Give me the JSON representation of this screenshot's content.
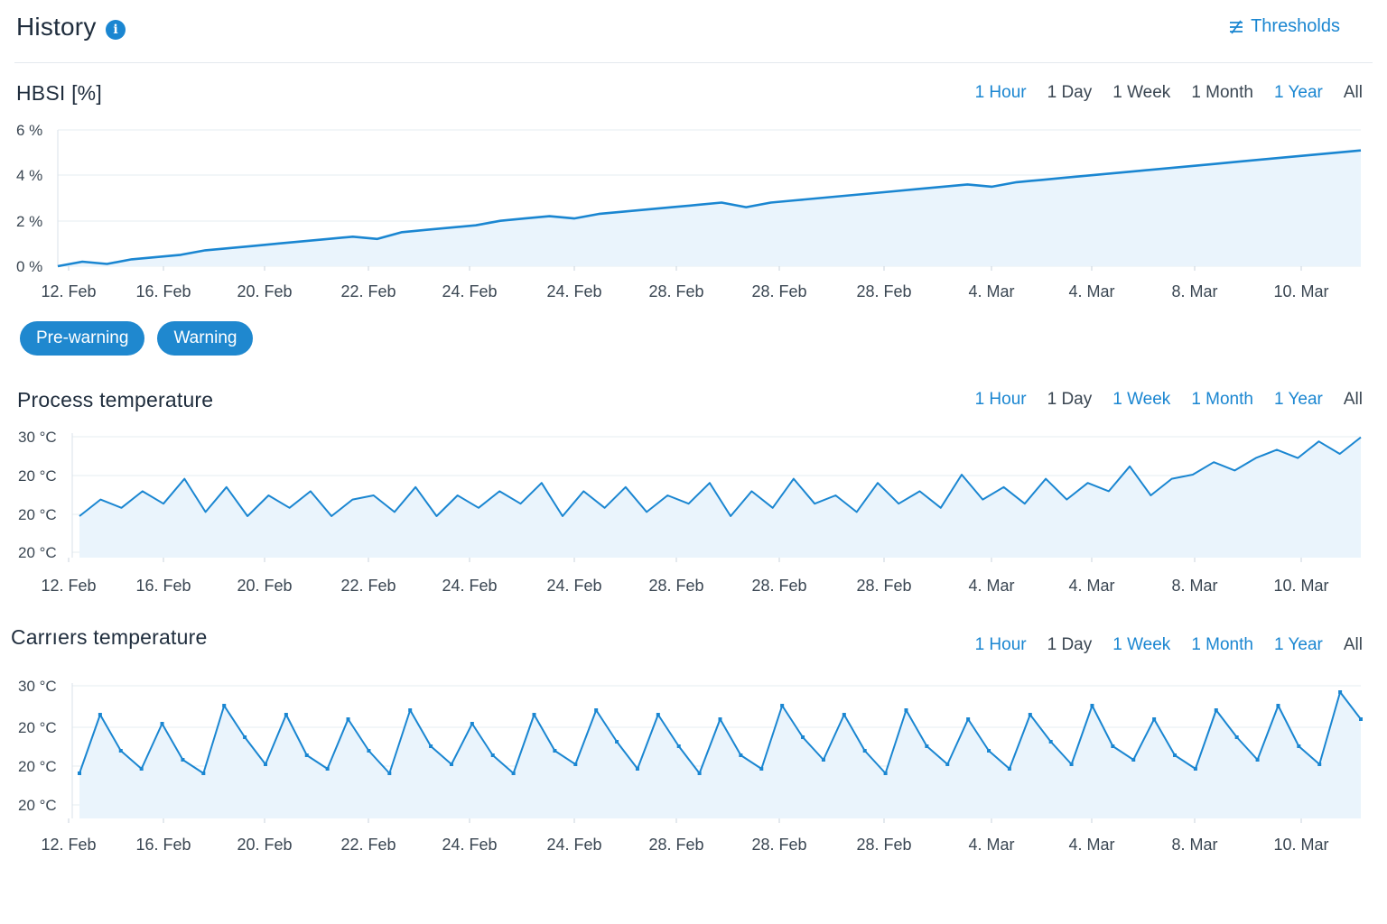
{
  "header": {
    "title": "History",
    "info_icon": "info-icon",
    "thresholds_label": "Thresholds",
    "thresholds_icon": "thresholds-icon"
  },
  "colors": {
    "accent": "#1a86d1",
    "line": "#1a86d1",
    "area": "#eaf4fc",
    "grid": "#e6ecf1"
  },
  "time_ranges": [
    "1 Hour",
    "1 Day",
    "1 Week",
    "1 Month",
    "1 Year",
    "All"
  ],
  "chips": [
    "Pre-warning",
    "Warning"
  ],
  "charts": [
    {
      "title": "HBSI [%]",
      "active_ranges": [
        "1 Hour",
        "1 Year"
      ]
    },
    {
      "title": "Process temperature",
      "active_ranges": [
        "1 Hour",
        "1 Week",
        "1 Month",
        "1 Year"
      ]
    },
    {
      "title": "Carrıers temperature",
      "active_ranges": [
        "1 Hour",
        "1 Week",
        "1 Month",
        "1 Year"
      ]
    }
  ],
  "chart_data": [
    {
      "type": "area",
      "title": "HBSI [%]",
      "x_tick_labels": [
        "12. Feb",
        "16. Feb",
        "20. Feb",
        "22. Feb",
        "24. Feb",
        "24. Feb",
        "28. Feb",
        "28. Feb",
        "28. Feb",
        "4. Mar",
        "4. Mar",
        "8. Mar",
        "10. Mar"
      ],
      "y_tick_labels": [
        "6 %",
        "4 %",
        "2 %",
        "0 %"
      ],
      "ylim": [
        0,
        6
      ],
      "y_unit": "%",
      "series": [
        {
          "values": [
            0.0,
            0.2,
            0.1,
            0.3,
            0.4,
            0.5,
            0.7,
            0.8,
            0.9,
            1.0,
            1.1,
            1.2,
            1.3,
            1.2,
            1.5,
            1.6,
            1.7,
            1.8,
            2.0,
            2.1,
            2.2,
            2.1,
            2.3,
            2.4,
            2.5,
            2.6,
            2.7,
            2.8,
            2.6,
            2.8,
            2.9,
            3.0,
            3.1,
            3.2,
            3.3,
            3.4,
            3.5,
            3.6,
            3.5,
            3.7,
            3.8,
            3.9,
            4.0,
            4.1,
            4.2,
            4.3,
            4.4,
            4.5,
            4.6,
            4.7,
            4.8,
            4.9,
            5.0,
            5.1
          ]
        }
      ]
    },
    {
      "type": "line",
      "title": "Process temperature",
      "x_tick_labels": [
        "12. Feb",
        "16. Feb",
        "20. Feb",
        "22. Feb",
        "24. Feb",
        "24. Feb",
        "28. Feb",
        "28. Feb",
        "28. Feb",
        "4. Mar",
        "4. Mar",
        "8. Mar",
        "10. Mar"
      ],
      "y_tick_labels": [
        "30 °C",
        "20 °C",
        "20 °C",
        "20 °C"
      ],
      "ylim": [
        0,
        3
      ],
      "series": [
        {
          "values": [
            1.0,
            1.4,
            1.2,
            1.6,
            1.3,
            1.9,
            1.1,
            1.7,
            1.0,
            1.5,
            1.2,
            1.6,
            1.0,
            1.4,
            1.5,
            1.1,
            1.7,
            1.0,
            1.5,
            1.2,
            1.6,
            1.3,
            1.8,
            1.0,
            1.6,
            1.2,
            1.7,
            1.1,
            1.5,
            1.3,
            1.8,
            1.0,
            1.6,
            1.2,
            1.9,
            1.3,
            1.5,
            1.1,
            1.8,
            1.3,
            1.6,
            1.2,
            2.0,
            1.4,
            1.7,
            1.3,
            1.9,
            1.4,
            1.8,
            1.6,
            2.2,
            1.5,
            1.9,
            2.0,
            2.3,
            2.1,
            2.4,
            2.6,
            2.4,
            2.8,
            2.5,
            2.9
          ]
        }
      ]
    },
    {
      "type": "line",
      "title": "Carrıers temperature",
      "x_tick_labels": [
        "12. Feb",
        "16. Feb",
        "20. Feb",
        "22. Feb",
        "24. Feb",
        "24. Feb",
        "28. Feb",
        "28. Feb",
        "28. Feb",
        "4. Mar",
        "4. Mar",
        "8. Mar",
        "10. Mar"
      ],
      "y_tick_labels": [
        "30 °C",
        "20 °C",
        "20 °C",
        "20 °C"
      ],
      "ylim": [
        0,
        3
      ],
      "series": [
        {
          "values": [
            1.0,
            2.3,
            1.5,
            1.1,
            2.1,
            1.3,
            1.0,
            2.5,
            1.8,
            1.2,
            2.3,
            1.4,
            1.1,
            2.2,
            1.5,
            1.0,
            2.4,
            1.6,
            1.2,
            2.1,
            1.4,
            1.0,
            2.3,
            1.5,
            1.2,
            2.4,
            1.7,
            1.1,
            2.3,
            1.6,
            1.0,
            2.2,
            1.4,
            1.1,
            2.5,
            1.8,
            1.3,
            2.3,
            1.5,
            1.0,
            2.4,
            1.6,
            1.2,
            2.2,
            1.5,
            1.1,
            2.3,
            1.7,
            1.2,
            2.5,
            1.6,
            1.3,
            2.2,
            1.4,
            1.1,
            2.4,
            1.8,
            1.3,
            2.5,
            1.6,
            1.2,
            2.8,
            2.2
          ]
        }
      ]
    }
  ]
}
